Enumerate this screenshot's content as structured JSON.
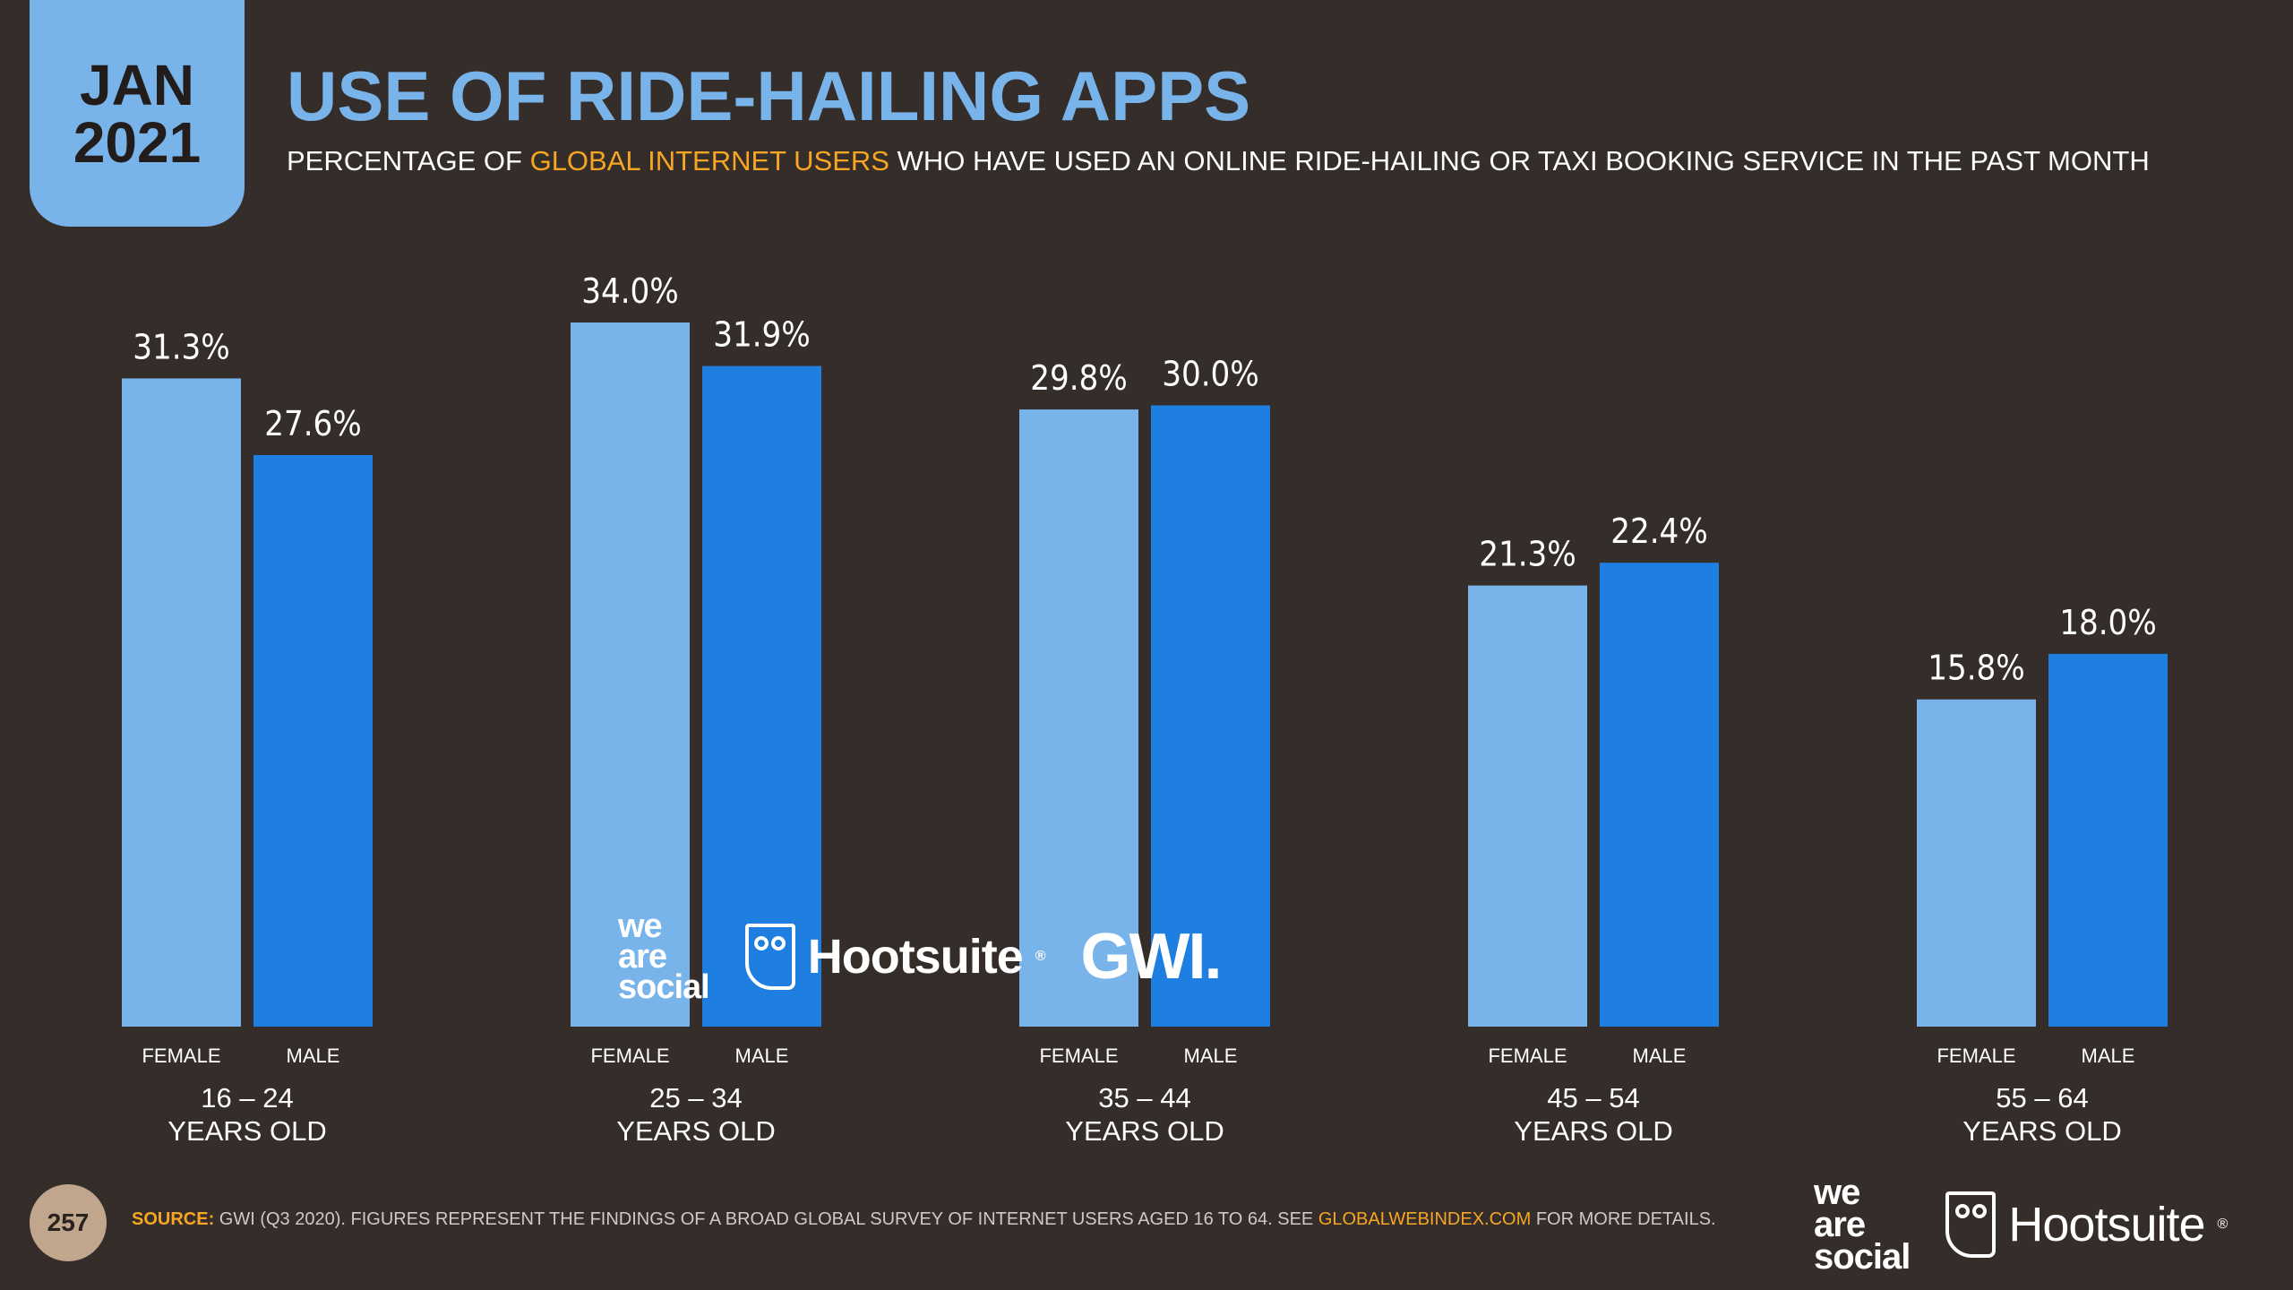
{
  "badge": {
    "month": "JAN",
    "year": "2021"
  },
  "title": "USE OF RIDE-HAILING APPS",
  "subtitle": {
    "pre": "PERCENTAGE OF ",
    "highlight": "GLOBAL INTERNET USERS",
    "post": " WHO HAVE USED AN ONLINE RIDE-HAILING OR TAXI BOOKING SERVICE IN THE PAST MONTH"
  },
  "colors": {
    "background": "#352d29",
    "female": "#78b3ea",
    "male": "#1e7fe0",
    "accent": "#f6a623",
    "text": "#ffffff"
  },
  "chart_data": {
    "type": "bar",
    "title": "USE OF RIDE-HAILING APPS",
    "categories": [
      "16 – 24",
      "25 – 34",
      "35 – 44",
      "45 – 54",
      "55 – 64"
    ],
    "category_suffix": "YEARS OLD",
    "series": [
      {
        "name": "FEMALE",
        "values": [
          31.3,
          34.0,
          29.8,
          21.3,
          15.8
        ],
        "labels": [
          "31.3%",
          "34.0%",
          "29.8%",
          "21.3%",
          "15.8%"
        ]
      },
      {
        "name": "MALE",
        "values": [
          27.6,
          31.9,
          30.0,
          22.4,
          18.0
        ],
        "labels": [
          "27.6%",
          "31.9%",
          "30.0%",
          "22.4%",
          "18.0%"
        ]
      }
    ],
    "ylim": [
      0,
      34.0
    ],
    "grid": false,
    "legend": "none"
  },
  "logos": {
    "we": "we",
    "are": "are",
    "social": "social",
    "hootsuite": "Hootsuite",
    "reg": "®",
    "gwi": "GWI."
  },
  "footer": {
    "page_number": "257",
    "source_label": "SOURCE:",
    "source_text": " GWI (Q3 2020). FIGURES REPRESENT THE FINDINGS OF A BROAD GLOBAL SURVEY OF INTERNET USERS AGED 16 TO 64. SEE ",
    "source_link": "GLOBALWEBINDEX.COM",
    "source_end": " FOR MORE DETAILS."
  }
}
